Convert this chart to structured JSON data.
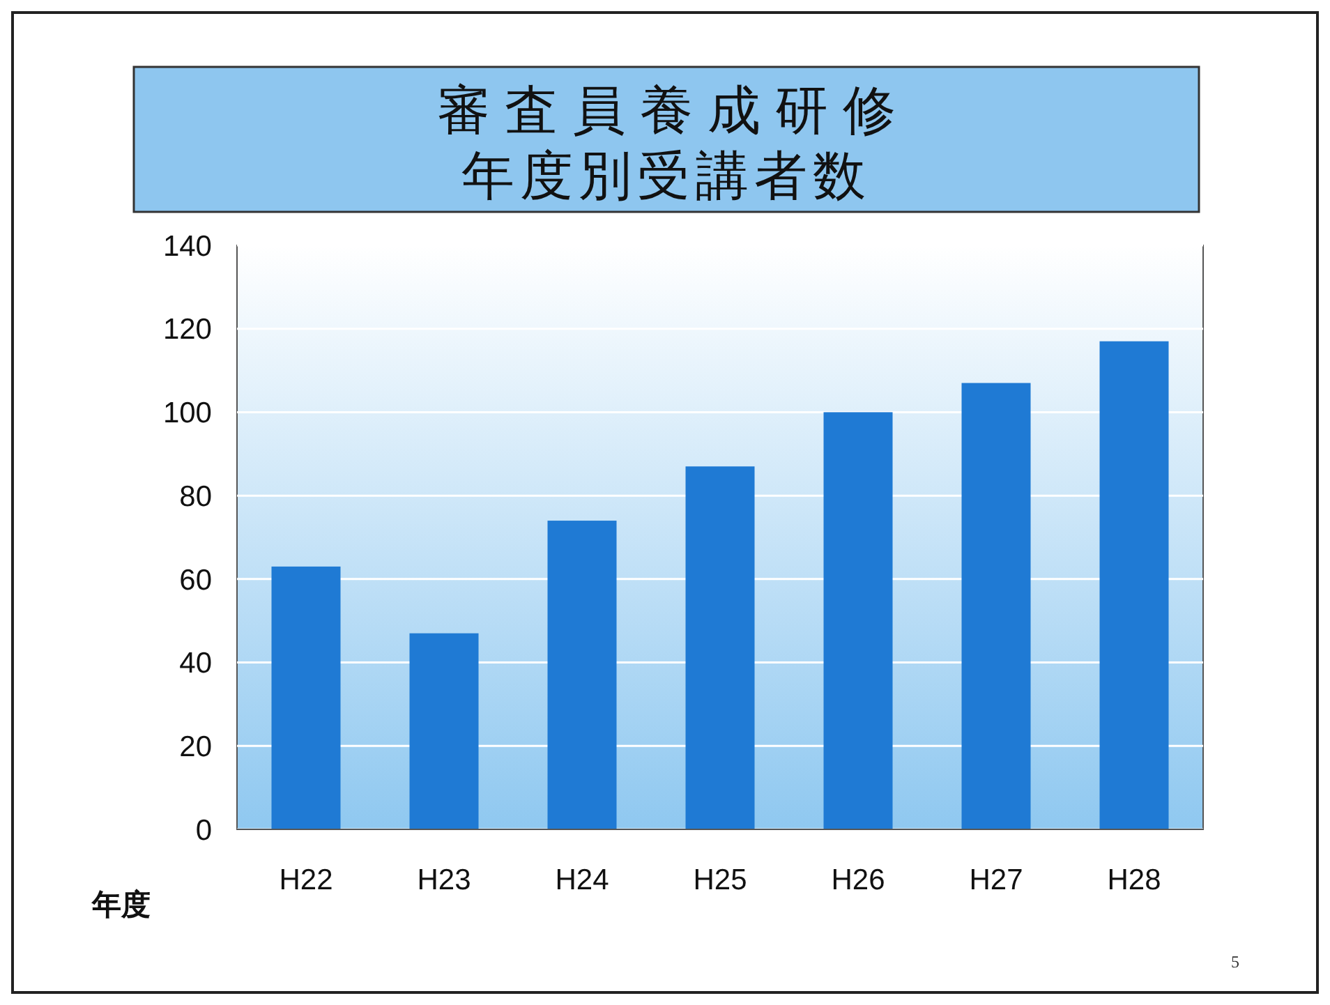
{
  "chart_data": {
    "type": "bar",
    "title": "審 査 員 養 成 研 修",
    "subtitle": "年度別受講者数",
    "xlabel": "年度",
    "categories": [
      "H22",
      "H23",
      "H24",
      "H25",
      "H26",
      "H27",
      "H28"
    ],
    "values": [
      63,
      47,
      74,
      87,
      100,
      107,
      117
    ],
    "color": "#1f7ad4",
    "ylim": [
      0,
      140
    ],
    "yticks": [
      0,
      20,
      40,
      60,
      80,
      100,
      120,
      140
    ],
    "grid": "y",
    "annotations": [
      "5"
    ]
  }
}
